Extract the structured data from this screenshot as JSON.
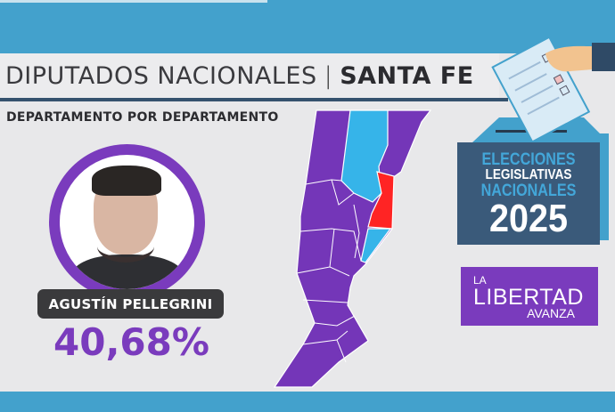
{
  "header": {
    "title_light": "DIPUTADOS NACIONALES",
    "separator": "|",
    "title_bold": "SANTA FE",
    "subtitle": "DEPARTAMENTO POR DEPARTAMENTO"
  },
  "candidate": {
    "name": "AGUSTÍN PELLEGRINI",
    "percentage": "40,68%"
  },
  "ballot_box": {
    "line1": "ELECCIONES",
    "line2": "LEGISLATIVAS",
    "line3": "NACIONALES",
    "year": "2025"
  },
  "party_logo": {
    "line1": "LA",
    "line2": "LIBERTAD",
    "line3": "AVANZA"
  },
  "colors": {
    "party_purple": "#7a3bbd",
    "blue_party": "#35b3e8",
    "red_party": "#ff2424",
    "band_blue": "#43a1cc"
  },
  "map": {
    "region": "SANTA FE",
    "departments_winner": {
      "purple": "majority",
      "light-blue": 2,
      "red": 1
    }
  }
}
